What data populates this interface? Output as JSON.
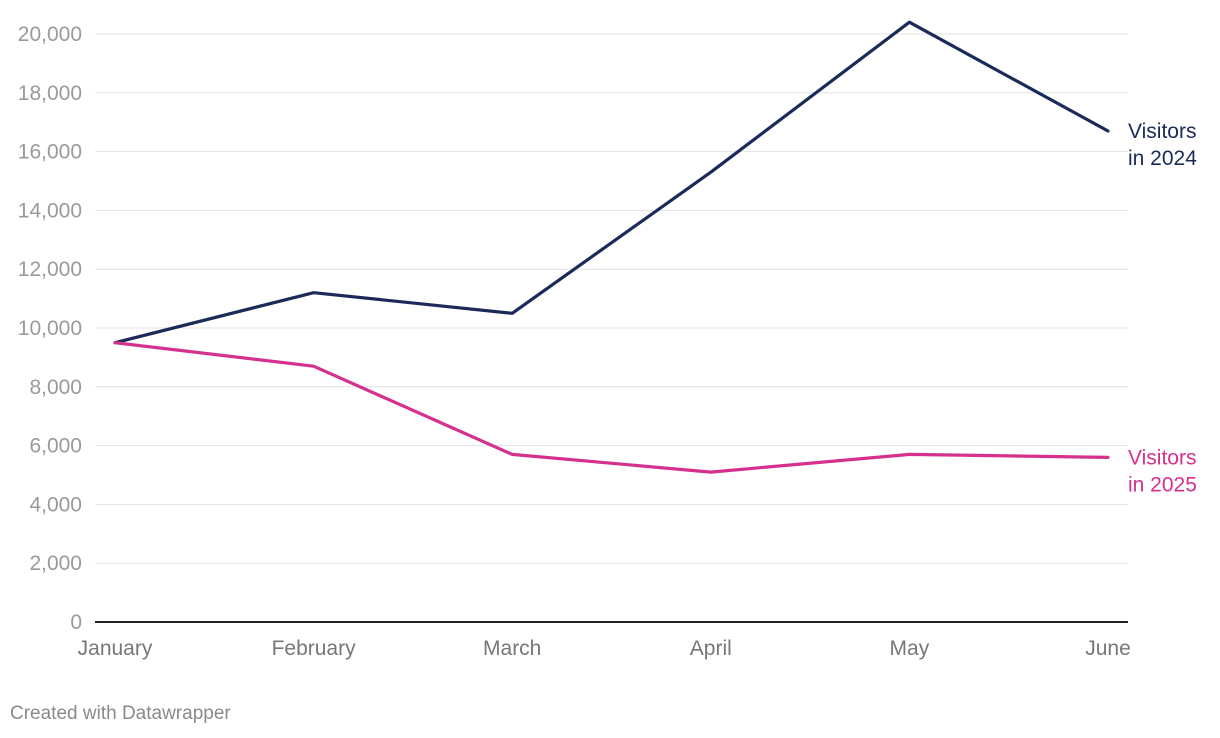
{
  "chart_data": {
    "type": "line",
    "categories": [
      "January",
      "February",
      "March",
      "April",
      "May",
      "June"
    ],
    "ylim": [
      0,
      20000
    ],
    "yticks": [
      "0",
      "2,000",
      "4,000",
      "6,000",
      "8,000",
      "10,000",
      "12,000",
      "14,000",
      "16,000",
      "18,000",
      "20,000"
    ],
    "grid": true,
    "legend": "direct labels at line ends (right)",
    "series": [
      {
        "name": "Visitors in 2024",
        "label_lines": [
          "Visitors",
          "in 2024"
        ],
        "color": "#1c2a5a",
        "values": [
          9500,
          11200,
          10500,
          15300,
          20400,
          16700
        ]
      },
      {
        "name": "Visitors in 2025",
        "label_lines": [
          "Visitors",
          "in 2025"
        ],
        "color": "#d6308e",
        "values": [
          9500,
          8700,
          5700,
          5100,
          5700,
          5600
        ]
      }
    ]
  },
  "footer": {
    "credit": "Created with Datawrapper"
  }
}
